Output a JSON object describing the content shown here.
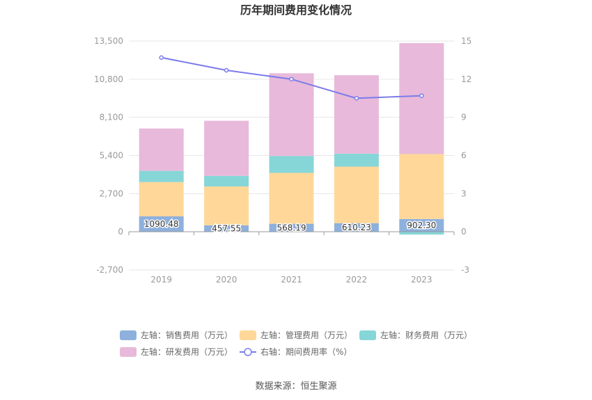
{
  "chart_data": {
    "type": "bar",
    "title": "历年期间费用变化情况",
    "categories": [
      "2019",
      "2020",
      "2021",
      "2022",
      "2023"
    ],
    "left_axis": {
      "min": -2700,
      "max": 13500,
      "ticks": [
        -2700,
        0,
        2700,
        5400,
        8100,
        10800,
        13500
      ],
      "tick_labels": [
        "-2,700",
        "0",
        "2,700",
        "5,400",
        "8,100",
        "10,800",
        "13,500"
      ]
    },
    "right_axis": {
      "min": -3,
      "max": 15,
      "ticks": [
        -3,
        0,
        3,
        6,
        9,
        12,
        15
      ],
      "tick_labels": [
        "-3",
        "0",
        "3",
        "6",
        "9",
        "12",
        "15"
      ]
    },
    "series": [
      {
        "name": "左轴：销售费用（万元）",
        "kind": "bar",
        "axis": "left",
        "color": "#8EB0DC",
        "values": [
          1090.48,
          457.55,
          568.19,
          610.23,
          902.3
        ],
        "labels": [
          "1090.48",
          "457.55",
          "568.19",
          "610.23",
          "902.30"
        ]
      },
      {
        "name": "左轴：管理费用（万元）",
        "kind": "bar",
        "axis": "left",
        "color": "#FFD899",
        "values": [
          2430,
          2750,
          3600,
          4000,
          4600
        ]
      },
      {
        "name": "左轴：财务费用（万元）",
        "kind": "bar",
        "axis": "left",
        "color": "#86D6D8",
        "values": [
          790,
          750,
          1200,
          920,
          -200
        ]
      },
      {
        "name": "左轴：研发费用（万元）",
        "kind": "bar",
        "axis": "left",
        "color": "#E8B9DA",
        "values": [
          3000,
          3900,
          5850,
          5550,
          7850
        ]
      },
      {
        "name": "右轴：期间费用率（%）",
        "kind": "line",
        "axis": "right",
        "color": "#7B7BEB",
        "values": [
          13.7,
          12.7,
          12.0,
          10.5,
          10.7
        ]
      }
    ],
    "grid": true,
    "legend_position": "bottom"
  },
  "source": "数据来源：恒生聚源"
}
